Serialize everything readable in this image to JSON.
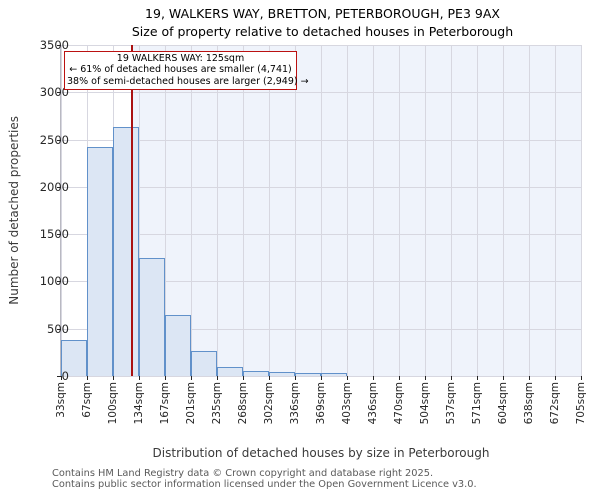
{
  "title": "19, WALKERS WAY, BRETTON, PETERBOROUGH, PE3 9AX",
  "subtitle": "Size of property relative to detached houses in Peterborough",
  "annotation": {
    "line1": "19 WALKERS WAY: 125sqm",
    "line2": "← 61% of detached houses are smaller (4,741)",
    "line3": "38% of semi-detached houses are larger (2,949) →"
  },
  "chart_data": {
    "type": "bar",
    "title": "19, WALKERS WAY, BRETTON, PETERBOROUGH, PE3 9AX",
    "subtitle": "Size of property relative to detached houses in Peterborough",
    "xlabel": "Distribution of detached houses by size in Peterborough",
    "ylabel": "Number of detached properties",
    "ylim": [
      0,
      3500
    ],
    "ytick_step": 500,
    "grid": true,
    "bin_edges_sqm": [
      33,
      67,
      100,
      134,
      167,
      201,
      235,
      268,
      302,
      336,
      369,
      403,
      436,
      470,
      504,
      537,
      571,
      604,
      638,
      672,
      705
    ],
    "categories": [
      "33sqm",
      "67sqm",
      "100sqm",
      "134sqm",
      "167sqm",
      "201sqm",
      "235sqm",
      "268sqm",
      "302sqm",
      "336sqm",
      "369sqm",
      "403sqm",
      "436sqm",
      "470sqm",
      "504sqm",
      "537sqm",
      "571sqm",
      "604sqm",
      "638sqm",
      "672sqm",
      "705sqm"
    ],
    "values": [
      380,
      2420,
      2630,
      1250,
      640,
      265,
      100,
      55,
      45,
      30,
      30,
      0,
      0,
      0,
      0,
      0,
      0,
      0,
      0,
      0
    ],
    "marker_value_sqm": 125,
    "shaded_region": {
      "from_sqm": 125,
      "to_sqm": 705
    },
    "colors": {
      "bar_fill": "#dce6f4",
      "bar_edge": "#6191ca",
      "marker_line": "#aa1111",
      "annotation_border": "#bb1111",
      "shaded_region": "#eff3fb",
      "grid": "#d7d7e0"
    }
  },
  "footer": {
    "line1": "Contains HM Land Registry data © Crown copyright and database right 2025.",
    "line2": "Contains public sector information licensed under the Open Government Licence v3.0."
  }
}
